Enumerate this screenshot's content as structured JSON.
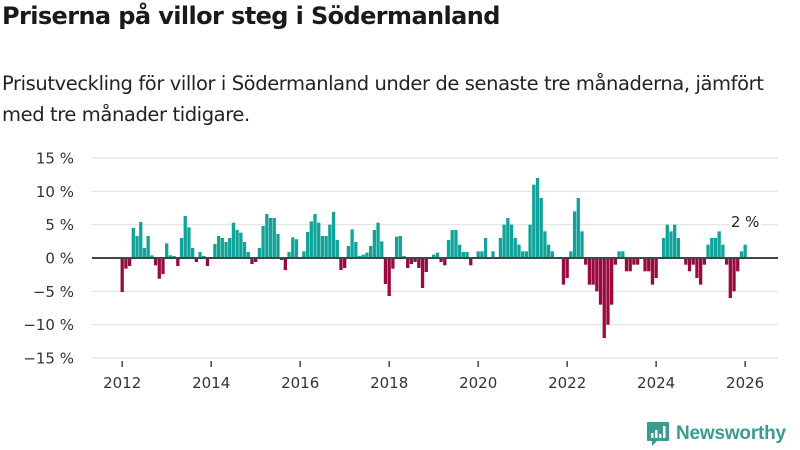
{
  "header": {
    "title": "Priserna på villor steg i Södermanland",
    "subtitle": "Prisutveckling för villor i Södermanland under de senaste tre månaderna, jämfört med tre månader tidigare."
  },
  "brand": {
    "name": "Newsworthy"
  },
  "colors": {
    "positive": "#0fa39a",
    "negative": "#990a3e",
    "zero_line": "#444444",
    "grid": "#e3e3e3",
    "brand": "#3c9a8f"
  },
  "chart_data": {
    "type": "bar",
    "title": "Priserna på villor steg i Södermanland",
    "subtitle": "Prisutveckling för villor i Södermanland under de senaste tre månaderna, jämfört med tre månader tidigare.",
    "xlabel": "",
    "ylabel": "",
    "x_start": "2012-01",
    "x_end": "2026-01",
    "frequency": "monthly",
    "unit": "%",
    "ylim": [
      -15,
      15
    ],
    "yticks": [
      15,
      10,
      5,
      0,
      -5,
      -10,
      -15
    ],
    "ytick_labels": [
      "15 %",
      "10 %",
      "5 %",
      "0 %",
      "−5 %",
      "−10 %",
      "−15 %"
    ],
    "xticks": [
      "2012",
      "2014",
      "2016",
      "2018",
      "2020",
      "2022",
      "2024",
      "2026"
    ],
    "grid": true,
    "legend": "none",
    "last_value_label": "2 %",
    "values": [
      -5.1,
      -1.6,
      -1.2,
      4.5,
      3.3,
      5.4,
      1.5,
      3.3,
      0.4,
      -1.1,
      -3.1,
      -2.4,
      2.2,
      0.4,
      0.3,
      -1.2,
      3.0,
      6.3,
      4.6,
      1.5,
      -0.6,
      0.9,
      0.3,
      -1.2,
      0.0,
      2.1,
      3.3,
      3.0,
      2.4,
      3.0,
      5.3,
      4.2,
      3.8,
      2.4,
      0.9,
      -0.9,
      -0.6,
      1.5,
      4.8,
      6.6,
      6.0,
      6.0,
      3.6,
      -0.3,
      -1.8,
      0.9,
      3.1,
      2.8,
      0.0,
      1.0,
      3.9,
      5.5,
      6.6,
      5.3,
      3.3,
      3.3,
      5.0,
      6.9,
      2.7,
      -1.8,
      -1.5,
      1.8,
      4.3,
      2.4,
      0.3,
      0.5,
      0.8,
      1.8,
      4.2,
      5.3,
      2.5,
      -3.9,
      -5.7,
      -1.6,
      3.2,
      3.3,
      0.3,
      -1.5,
      -0.9,
      -0.6,
      -1.5,
      -4.5,
      -2.1,
      0.0,
      0.5,
      0.8,
      -0.6,
      -1.1,
      2.7,
      4.2,
      4.2,
      2.0,
      0.9,
      0.9,
      -1.1,
      0.0,
      1.0,
      1.0,
      3.0,
      0.0,
      1.0,
      0.0,
      3.0,
      5.0,
      6.0,
      5.0,
      3.0,
      2.0,
      1.0,
      1.0,
      5.0,
      11.0,
      12.0,
      9.0,
      4.0,
      2.0,
      1.0,
      0.0,
      0.0,
      -4.0,
      -3.0,
      1.0,
      7.0,
      9.0,
      4.0,
      -1.0,
      -4.0,
      -4.0,
      -5.0,
      -7.0,
      -12.0,
      -10.0,
      -7.0,
      -1.0,
      1.0,
      1.0,
      -2.0,
      -2.0,
      -1.0,
      -1.0,
      0.0,
      -2.0,
      -2.0,
      -4.0,
      -3.0,
      0.0,
      3.0,
      5.0,
      4.0,
      5.0,
      3.0,
      0.0,
      -1.0,
      -2.0,
      -1.0,
      -3.0,
      -4.0,
      -1.0,
      2.0,
      3.0,
      3.0,
      4.0,
      2.0,
      -1.0,
      -6.0,
      -5.0,
      -2.0,
      1.0,
      2.0
    ]
  }
}
